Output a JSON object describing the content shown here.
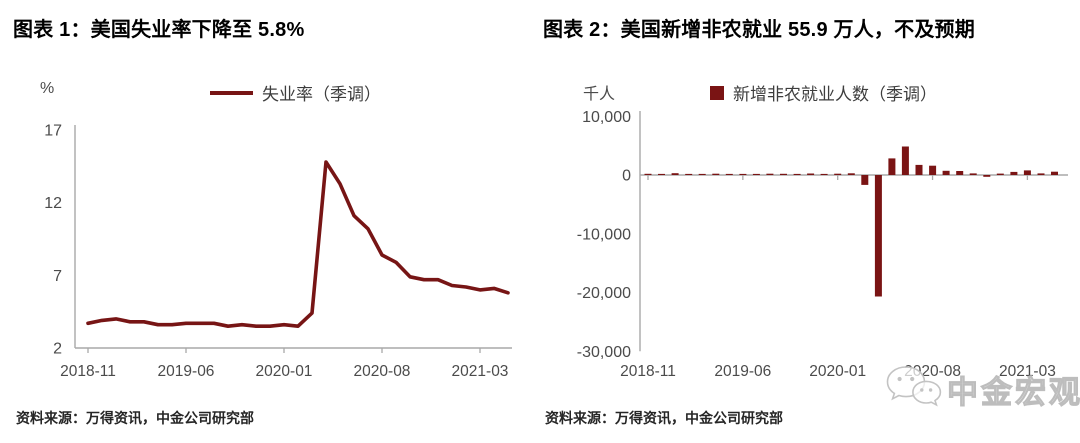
{
  "source_note": "资料来源：万得资讯，中金公司研究部",
  "watermark": {
    "label": "中金宏观",
    "icon": "wechat-icon"
  },
  "colors": {
    "series": "#771515",
    "axis": "#a9a9a9",
    "tick_text": "#4b4b4b",
    "title_text": "#000000"
  },
  "chart_data": [
    {
      "type": "line",
      "title": "图表 1：美国失业率下降至 5.8%",
      "unit_label": "%",
      "legend": "失业率（季调）",
      "legend_position": "top",
      "grid": false,
      "color": "#771515",
      "x": [
        "2018-11",
        "2018-12",
        "2019-01",
        "2019-02",
        "2019-03",
        "2019-04",
        "2019-05",
        "2019-06",
        "2019-07",
        "2019-08",
        "2019-09",
        "2019-10",
        "2019-11",
        "2019-12",
        "2020-01",
        "2020-02",
        "2020-03",
        "2020-04",
        "2020-05",
        "2020-06",
        "2020-07",
        "2020-08",
        "2020-09",
        "2020-10",
        "2020-11",
        "2020-12",
        "2021-01",
        "2021-02",
        "2021-03",
        "2021-04",
        "2021-05"
      ],
      "values": [
        3.7,
        3.9,
        4.0,
        3.8,
        3.8,
        3.6,
        3.6,
        3.7,
        3.7,
        3.7,
        3.5,
        3.6,
        3.5,
        3.5,
        3.6,
        3.5,
        4.4,
        14.8,
        13.3,
        11.1,
        10.2,
        8.4,
        7.9,
        6.9,
        6.7,
        6.7,
        6.3,
        6.2,
        6.0,
        6.1,
        5.8
      ],
      "x_tick_labels": [
        "2018-11",
        "2019-06",
        "2020-01",
        "2020-08",
        "2021-03"
      ],
      "y_ticks": [
        17,
        12,
        7,
        2
      ],
      "ylim": [
        2,
        17
      ],
      "source": "资料来源：万得资讯，中金公司研究部"
    },
    {
      "type": "bar",
      "title": "图表 2：美国新增非农就业 55.9 万人，不及预期",
      "unit_label": "千人",
      "legend": "新增非农就业人数（季调）",
      "legend_position": "top",
      "grid": false,
      "color": "#7a1414",
      "x": [
        "2018-11",
        "2018-12",
        "2019-01",
        "2019-02",
        "2019-03",
        "2019-04",
        "2019-05",
        "2019-06",
        "2019-07",
        "2019-08",
        "2019-09",
        "2019-10",
        "2019-11",
        "2019-12",
        "2020-01",
        "2020-02",
        "2020-03",
        "2020-04",
        "2020-05",
        "2020-06",
        "2020-07",
        "2020-08",
        "2020-09",
        "2020-10",
        "2020-11",
        "2020-12",
        "2021-01",
        "2021-02",
        "2021-03",
        "2021-04",
        "2021-05"
      ],
      "values": [
        196,
        182,
        312,
        56,
        153,
        216,
        62,
        178,
        166,
        219,
        208,
        185,
        261,
        184,
        214,
        289,
        -1683,
        -20679,
        2833,
        4846,
        1726,
        1583,
        716,
        680,
        264,
        -306,
        233,
        536,
        785,
        278,
        559
      ],
      "x_tick_labels": [
        "2018-11",
        "2019-06",
        "2020-01",
        "2020-08",
        "2021-03"
      ],
      "y_ticks": [
        10000,
        0,
        -10000,
        -20000,
        -30000
      ],
      "ylim": [
        -30000,
        10000
      ],
      "source": "资料来源：万得资讯，中金公司研究部"
    }
  ]
}
